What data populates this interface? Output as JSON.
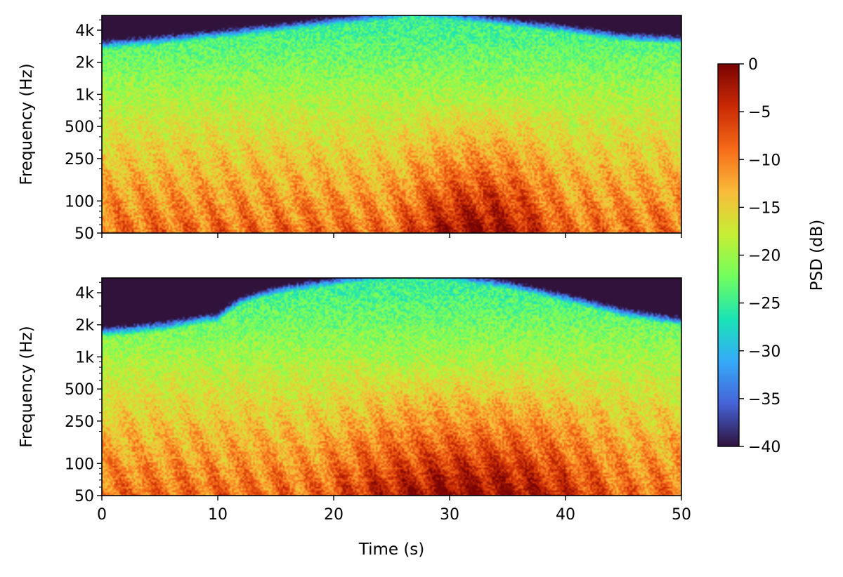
{
  "chart_data": [
    {
      "type": "heatmap",
      "subtype": "spectrogram",
      "panel": "top",
      "xlabel": "",
      "ylabel": "Frequency (Hz)",
      "xlim": [
        0,
        50
      ],
      "ylim": [
        50,
        5500
      ],
      "yscale": "log",
      "xticks": [
        0,
        10,
        20,
        30,
        40,
        50
      ],
      "xtick_labels": [
        "",
        "",
        "",
        "",
        "",
        ""
      ],
      "yticks": [
        50,
        100,
        250,
        500,
        1000,
        2000,
        4000
      ],
      "ytick_labels": [
        "50",
        "100",
        "250",
        "500",
        "1k",
        "2k",
        "4k"
      ],
      "colormap": "turbo",
      "hf_envelope": {
        "t": [
          0,
          5,
          10,
          15,
          20,
          25,
          27,
          30,
          35,
          40,
          45,
          50
        ],
        "freq_hz": [
          2600,
          2900,
          3300,
          3800,
          4400,
          5000,
          5400,
          5000,
          4300,
          3700,
          3100,
          2900
        ]
      },
      "low_freq_energy_peak_t": [
        25,
        40
      ]
    },
    {
      "type": "heatmap",
      "subtype": "spectrogram",
      "panel": "bottom",
      "xlabel": "Time (s)",
      "ylabel": "Frequency (Hz)",
      "xlim": [
        0,
        50
      ],
      "ylim": [
        50,
        5500
      ],
      "yscale": "log",
      "xticks": [
        0,
        10,
        20,
        30,
        40,
        50
      ],
      "xtick_labels": [
        "0",
        "10",
        "20",
        "30",
        "40",
        "50"
      ],
      "yticks": [
        50,
        100,
        250,
        500,
        1000,
        2000,
        4000
      ],
      "ytick_labels": [
        "50",
        "100",
        "250",
        "500",
        "1k",
        "2k",
        "4k"
      ],
      "colormap": "turbo",
      "hf_envelope": {
        "t": [
          0,
          5,
          10,
          12,
          15,
          20,
          25,
          30,
          35,
          40,
          45,
          50
        ],
        "freq_hz": [
          1500,
          1700,
          2100,
          3000,
          3800,
          4600,
          5400,
          5200,
          4300,
          3200,
          2300,
          1900
        ]
      },
      "low_freq_energy_peak_t": [
        18,
        45
      ]
    }
  ],
  "colorbar": {
    "label": "PSD (dB)",
    "range": [
      -40,
      0
    ],
    "ticks": [
      0,
      -5,
      -10,
      -15,
      -20,
      -25,
      -30,
      -35,
      -40
    ],
    "tick_labels": [
      "0",
      "−5",
      "−10",
      "−15",
      "−20",
      "−25",
      "−30",
      "−35",
      "−40"
    ],
    "colormap": "turbo"
  },
  "colors": {
    "turbo_stops": [
      "#30123b",
      "#4662d7",
      "#36aaf9",
      "#1ae4b6",
      "#72fe5e",
      "#c7ef34",
      "#fabb3a",
      "#f66b19",
      "#ca2a04",
      "#7a0403"
    ]
  }
}
